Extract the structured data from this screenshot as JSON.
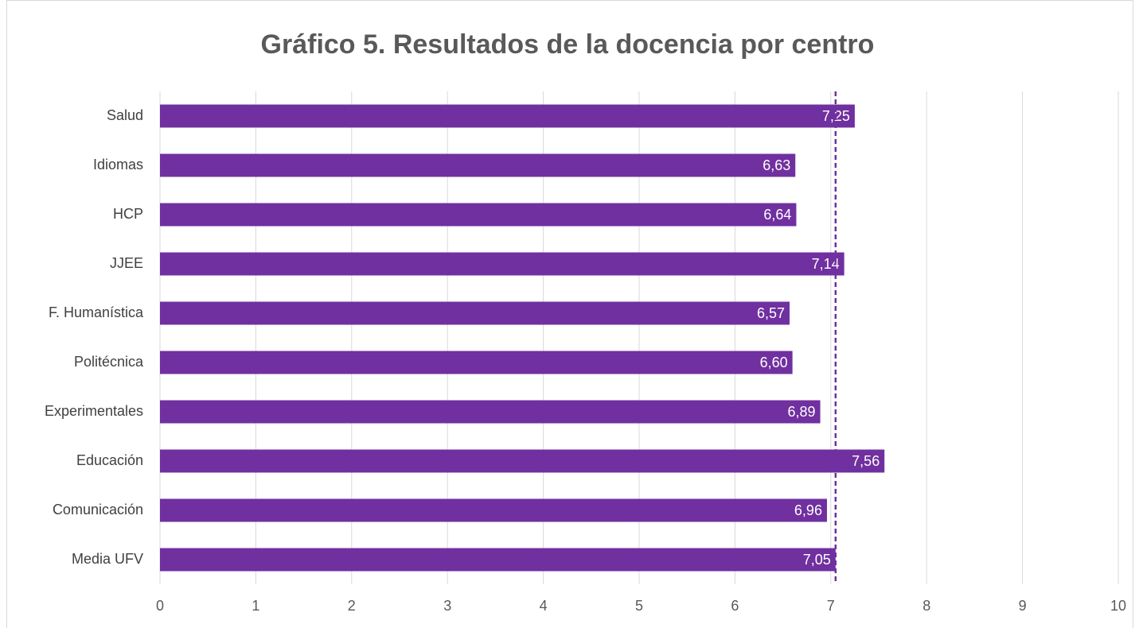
{
  "chart_data": {
    "type": "bar",
    "orientation": "horizontal",
    "title": "Gráfico 5. Resultados de la docencia por centro",
    "categories": [
      "Salud",
      "Idiomas",
      "HCP",
      "JJEE",
      "F. Humanística",
      "Politécnica",
      "Experimentales",
      "Educación",
      "Comunicación",
      "Media UFV"
    ],
    "values": [
      7.25,
      6.63,
      6.64,
      7.14,
      6.57,
      6.6,
      6.89,
      7.56,
      6.96,
      7.05
    ],
    "value_labels": [
      "7,25",
      "6,63",
      "6,64",
      "7,14",
      "6,57",
      "6,60",
      "6,89",
      "7,56",
      "6,96",
      "7,05"
    ],
    "color": "#7030a0",
    "reference_line": 7.05,
    "xlim": [
      0,
      10
    ],
    "xticks": [
      0,
      1,
      2,
      3,
      4,
      5,
      6,
      7,
      8,
      9,
      10
    ],
    "grid": true
  }
}
